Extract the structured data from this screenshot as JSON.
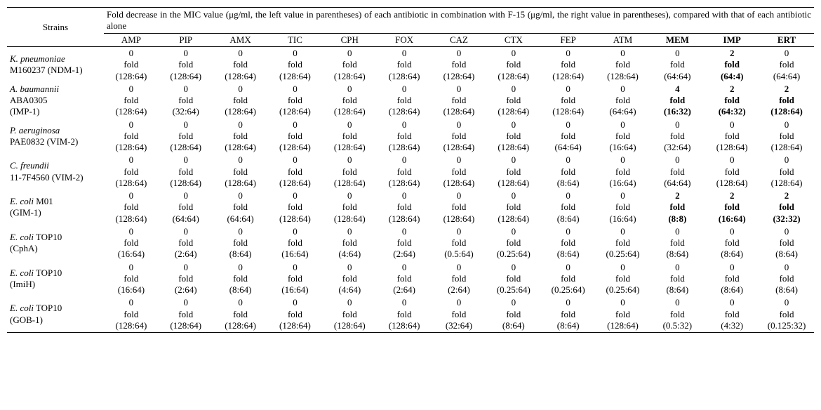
{
  "header": {
    "strains_label": "Strains",
    "caption": "Fold decrease in the MIC value (μg/ml, the left   value in parentheses) of each antibiotic in combination with F-15 (μg/ml, the   right value in parentheses), compared with that of each antibiotic alone",
    "columns": [
      "AMP",
      "PIP",
      "AMX",
      "TIC",
      "CPH",
      "FOX",
      "CAZ",
      "CTX",
      "FEP",
      "ATM",
      "MEM",
      "IMP",
      "ERT"
    ],
    "bold_columns": [
      "MEM",
      "IMP",
      "ERT"
    ]
  },
  "strains": [
    {
      "name_lines": [
        "<i>K. pneumoniae</i>",
        "M160237 (NDM-1)"
      ],
      "cells": [
        {
          "n": "0",
          "p": "(128:64)",
          "b": false
        },
        {
          "n": "0",
          "p": "(128:64)",
          "b": false
        },
        {
          "n": "0",
          "p": "(128:64)",
          "b": false
        },
        {
          "n": "0",
          "p": "(128:64)",
          "b": false
        },
        {
          "n": "0",
          "p": "(128:64)",
          "b": false
        },
        {
          "n": "0",
          "p": "(128:64)",
          "b": false
        },
        {
          "n": "0",
          "p": "(128:64)",
          "b": false
        },
        {
          "n": "0",
          "p": "(128:64)",
          "b": false
        },
        {
          "n": "0",
          "p": "(128:64)",
          "b": false
        },
        {
          "n": "0",
          "p": "(128:64)",
          "b": false
        },
        {
          "n": "0",
          "p": "(64:64)",
          "b": false
        },
        {
          "n": "2",
          "p": "(64:4)",
          "b": true
        },
        {
          "n": "0",
          "p": "(64:64)",
          "b": false
        }
      ]
    },
    {
      "name_lines": [
        "<i>A. baumannii</i>",
        "ABA0305",
        "(IMP-1)"
      ],
      "cells": [
        {
          "n": "0",
          "p": "(128:64)",
          "b": false
        },
        {
          "n": "0",
          "p": "(32:64)",
          "b": false
        },
        {
          "n": "0",
          "p": "(128:64)",
          "b": false
        },
        {
          "n": "0",
          "p": "(128:64)",
          "b": false
        },
        {
          "n": "0",
          "p": "(128:64)",
          "b": false
        },
        {
          "n": "0",
          "p": "(128:64)",
          "b": false
        },
        {
          "n": "0",
          "p": "(128:64)",
          "b": false
        },
        {
          "n": "0",
          "p": "(128:64)",
          "b": false
        },
        {
          "n": "0",
          "p": "(128:64)",
          "b": false
        },
        {
          "n": "0",
          "p": "(64:64)",
          "b": false
        },
        {
          "n": "4",
          "p": "(16:32)",
          "b": true
        },
        {
          "n": "2",
          "p": "(64:32)",
          "b": true
        },
        {
          "n": "2",
          "p": "(128:64)",
          "b": true
        }
      ]
    },
    {
      "name_lines": [
        "<i>P. aeruginosa</i>",
        "PAE0832 (VIM-2)"
      ],
      "cells": [
        {
          "n": "0",
          "p": "(128:64)",
          "b": false
        },
        {
          "n": "0",
          "p": "(128:64)",
          "b": false
        },
        {
          "n": "0",
          "p": "(128:64)",
          "b": false
        },
        {
          "n": "0",
          "p": "(128:64)",
          "b": false
        },
        {
          "n": "0",
          "p": "(128:64)",
          "b": false
        },
        {
          "n": "0",
          "p": "(128:64)",
          "b": false
        },
        {
          "n": "0",
          "p": "(128:64)",
          "b": false
        },
        {
          "n": "0",
          "p": "(128:64)",
          "b": false
        },
        {
          "n": "0",
          "p": "(64:64)",
          "b": false
        },
        {
          "n": "0",
          "p": "(16:64)",
          "b": false
        },
        {
          "n": "0",
          "p": "(32:64)",
          "b": false
        },
        {
          "n": "0",
          "p": "(128:64)",
          "b": false
        },
        {
          "n": "0",
          "p": "(128:64)",
          "b": false
        }
      ]
    },
    {
      "name_lines": [
        "<i>C. freundii</i>",
        "11-7F4560 (VIM-2)"
      ],
      "cells": [
        {
          "n": "0",
          "p": "(128:64)",
          "b": false
        },
        {
          "n": "0",
          "p": "(128:64)",
          "b": false
        },
        {
          "n": "0",
          "p": "(128:64)",
          "b": false
        },
        {
          "n": "0",
          "p": "(128:64)",
          "b": false
        },
        {
          "n": "0",
          "p": "(128:64)",
          "b": false
        },
        {
          "n": "0",
          "p": "(128:64)",
          "b": false
        },
        {
          "n": "0",
          "p": "(128:64)",
          "b": false
        },
        {
          "n": "0",
          "p": "(128:64)",
          "b": false
        },
        {
          "n": "0",
          "p": "(8:64)",
          "b": false
        },
        {
          "n": "0",
          "p": "(16:64)",
          "b": false
        },
        {
          "n": "0",
          "p": "(64:64)",
          "b": false
        },
        {
          "n": "0",
          "p": "(128:64)",
          "b": false
        },
        {
          "n": "0",
          "p": "(128:64)",
          "b": false
        }
      ]
    },
    {
      "name_lines": [
        "<i>E. coli</i> M01",
        "(GIM-1)"
      ],
      "cells": [
        {
          "n": "0",
          "p": "(128:64)",
          "b": false
        },
        {
          "n": "0",
          "p": "(64:64)",
          "b": false
        },
        {
          "n": "0",
          "p": "(64:64)",
          "b": false
        },
        {
          "n": "0",
          "p": "(128:64)",
          "b": false
        },
        {
          "n": "0",
          "p": "(128:64)",
          "b": false
        },
        {
          "n": "0",
          "p": "(128:64)",
          "b": false
        },
        {
          "n": "0",
          "p": "(128:64)",
          "b": false
        },
        {
          "n": "0",
          "p": "(128:64)",
          "b": false
        },
        {
          "n": "0",
          "p": "(8:64)",
          "b": false
        },
        {
          "n": "0",
          "p": "(16:64)",
          "b": false
        },
        {
          "n": "2",
          "p": "(8:8)",
          "b": true
        },
        {
          "n": "2",
          "p": "(16:64)",
          "b": true
        },
        {
          "n": "2",
          "p": "(32:32)",
          "b": true
        }
      ]
    },
    {
      "name_lines": [
        "<i>E. coli</i> TOP10",
        "(CphA)"
      ],
      "cells": [
        {
          "n": "0",
          "p": "(16:64)",
          "b": false
        },
        {
          "n": "0",
          "p": "(2:64)",
          "b": false
        },
        {
          "n": "0",
          "p": "(8:64)",
          "b": false
        },
        {
          "n": "0",
          "p": "(16:64)",
          "b": false
        },
        {
          "n": "0",
          "p": "(4:64)",
          "b": false
        },
        {
          "n": "0",
          "p": "(2:64)",
          "b": false
        },
        {
          "n": "0",
          "p": "(0.5:64)",
          "b": false
        },
        {
          "n": "0",
          "p": "(0.25:64)",
          "b": false
        },
        {
          "n": "0",
          "p": "(8:64)",
          "b": false
        },
        {
          "n": "0",
          "p": "(0.25:64)",
          "b": false
        },
        {
          "n": "0",
          "p": "(8:64)",
          "b": false
        },
        {
          "n": "0",
          "p": "(8:64)",
          "b": false
        },
        {
          "n": "0",
          "p": "(8:64)",
          "b": false
        }
      ]
    },
    {
      "name_lines": [
        "<i>E. coli</i> TOP10",
        "(ImiH)"
      ],
      "cells": [
        {
          "n": "0",
          "p": "(16:64)",
          "b": false
        },
        {
          "n": "0",
          "p": "(2:64)",
          "b": false
        },
        {
          "n": "0",
          "p": "(8:64)",
          "b": false
        },
        {
          "n": "0",
          "p": "(16:64)",
          "b": false
        },
        {
          "n": "0",
          "p": "(4:64)",
          "b": false
        },
        {
          "n": "0",
          "p": "(2:64)",
          "b": false
        },
        {
          "n": "0",
          "p": "(2:64)",
          "b": false
        },
        {
          "n": "0",
          "p": "(0.25:64)",
          "b": false
        },
        {
          "n": "0",
          "p": "(0.25:64)",
          "b": false
        },
        {
          "n": "0",
          "p": "(0.25:64)",
          "b": false
        },
        {
          "n": "0",
          "p": "(8:64)",
          "b": false
        },
        {
          "n": "0",
          "p": "(8:64)",
          "b": false
        },
        {
          "n": "0",
          "p": "(8:64)",
          "b": false
        }
      ]
    },
    {
      "name_lines": [
        "<i>E. coli</i> TOP10",
        "(GOB-1)"
      ],
      "cells": [
        {
          "n": "0",
          "p": "(128:64)",
          "b": false
        },
        {
          "n": "0",
          "p": "(128:64)",
          "b": false
        },
        {
          "n": "0",
          "p": "(128:64)",
          "b": false
        },
        {
          "n": "0",
          "p": "(128:64)",
          "b": false
        },
        {
          "n": "0",
          "p": "(128:64)",
          "b": false
        },
        {
          "n": "0",
          "p": "(128:64)",
          "b": false
        },
        {
          "n": "0",
          "p": "(32:64)",
          "b": false
        },
        {
          "n": "0",
          "p": "(8:64)",
          "b": false
        },
        {
          "n": "0",
          "p": "(8:64)",
          "b": false
        },
        {
          "n": "0",
          "p": "(128:64)",
          "b": false
        },
        {
          "n": "0",
          "p": "(0.5:32)",
          "b": false
        },
        {
          "n": "0",
          "p": "(4:32)",
          "b": false
        },
        {
          "n": "0",
          "p": "(0.125:32)",
          "b": false
        }
      ]
    }
  ],
  "fold_word": "fold",
  "col_width_strain": "12%",
  "col_width_data": "6.77%"
}
